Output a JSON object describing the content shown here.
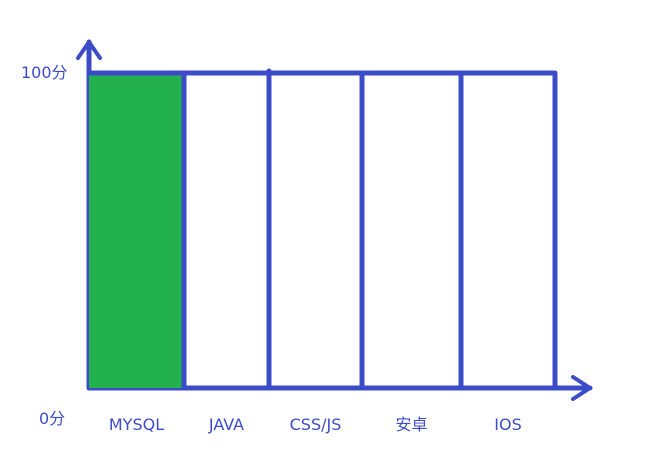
{
  "chart_data": {
    "type": "bar",
    "categories": [
      "MYSQL",
      "JAVA",
      "CSS/JS",
      "安卓",
      "IOS"
    ],
    "values": [
      100,
      0,
      0,
      0,
      0
    ],
    "ylim": [
      0,
      100
    ],
    "y_tick_labels": {
      "max": "100分",
      "min": "0分"
    },
    "title": "",
    "xlabel": "",
    "ylabel": "",
    "colors": {
      "axis": "#3c4cc8",
      "fill": "#22b14c",
      "background": "#ffffff"
    }
  }
}
